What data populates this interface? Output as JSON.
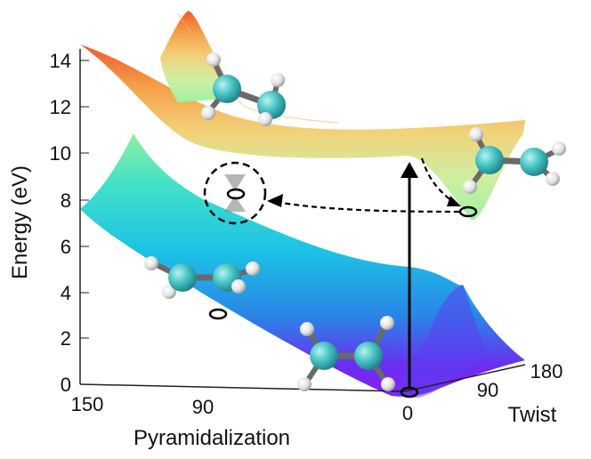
{
  "y_axis": {
    "label": "Energy (eV)",
    "ticks": [
      "0",
      "2",
      "4",
      "6",
      "8",
      "10",
      "12",
      "14"
    ]
  },
  "pyramidalization_axis": {
    "label": "Pyramidalization",
    "ticks": [
      "150",
      "90",
      "0"
    ]
  },
  "twist_axis": {
    "label": "Twist",
    "ticks": [
      "90",
      "180"
    ]
  },
  "surfaces": {
    "upper": {
      "gradient": [
        "#ef5a2a",
        "#f5a24b",
        "#f2d27a",
        "#cfeea0",
        "#9ff3a4"
      ]
    },
    "lower": {
      "gradient": [
        "#8ff0a0",
        "#40e0c8",
        "#1cc2e6",
        "#2a83e6",
        "#6a2ff0",
        "#8a1ef5"
      ]
    }
  },
  "colors": {
    "carbon": "#45c3c3",
    "hydrogen": "#e8e8e8",
    "bond": "#6a6a6a",
    "arrow": "#000000"
  }
}
